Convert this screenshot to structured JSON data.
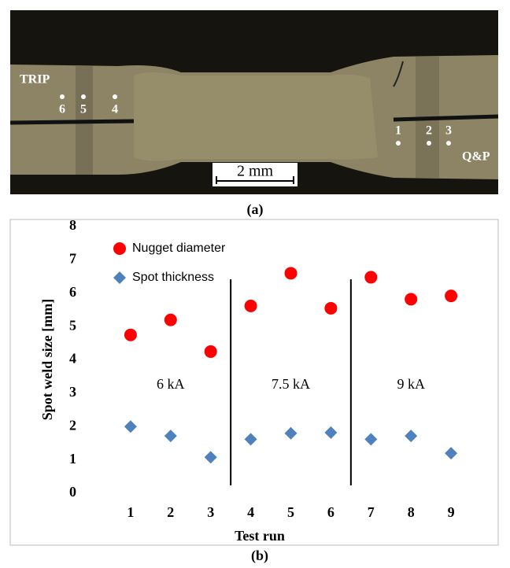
{
  "figure_a": {
    "panel_label": "(a)",
    "left_label": "TRIP",
    "right_label": "Q&P",
    "points": [
      "6",
      "5",
      "4",
      "1",
      "2",
      "3"
    ],
    "scale_bar": "2 mm"
  },
  "chart_data": {
    "type": "scatter",
    "panel_label": "(b)",
    "x_label": "Test run",
    "y_label": "Spot weld size  [mm]",
    "x": [
      1,
      2,
      3,
      4,
      5,
      6,
      7,
      8,
      9
    ],
    "series": [
      {
        "name": "Nugget diameter",
        "color": "#ff0000",
        "marker": "circle",
        "values": [
          4.75,
          5.2,
          4.25,
          5.62,
          6.6,
          5.55,
          6.48,
          5.82,
          5.92
        ]
      },
      {
        "name": "Spot thickness",
        "color": "#4f81bd",
        "marker": "diamond",
        "values": [
          2.0,
          1.72,
          1.08,
          1.62,
          1.8,
          1.82,
          1.62,
          1.72,
          1.2
        ]
      }
    ],
    "annotations": [
      "6 kA",
      "7.5 kA",
      "9 kA"
    ],
    "xlim": [
      0,
      10
    ],
    "xticks": [
      1,
      2,
      3,
      4,
      5,
      6,
      7,
      8,
      9
    ],
    "ylim": [
      0,
      8
    ],
    "yticks": [
      0,
      1,
      2,
      3,
      4,
      5,
      6,
      7,
      8
    ],
    "grid": false,
    "legend": "top-left"
  }
}
